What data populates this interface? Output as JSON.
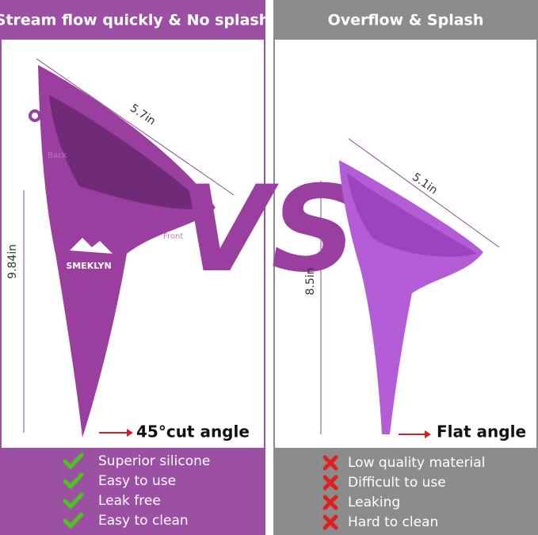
{
  "left": {
    "header": "Stream flow quickly & No splash",
    "brand": "SMEKLYN",
    "back": "Back",
    "front": "Front",
    "width": "5.7in",
    "height": "9.84in",
    "angle": "45°cut angle",
    "features": [
      "Superior silicone",
      "Easy to use",
      "Leak free",
      "Easy to clean"
    ]
  },
  "vs": "VS",
  "right": {
    "header": "Overflow & Splash",
    "width": "5.1in",
    "height": "8.5in",
    "angle": "Flat angle",
    "features": [
      "Low quality material",
      "Difficult to use",
      "Leaking",
      "Hard to clean"
    ]
  }
}
